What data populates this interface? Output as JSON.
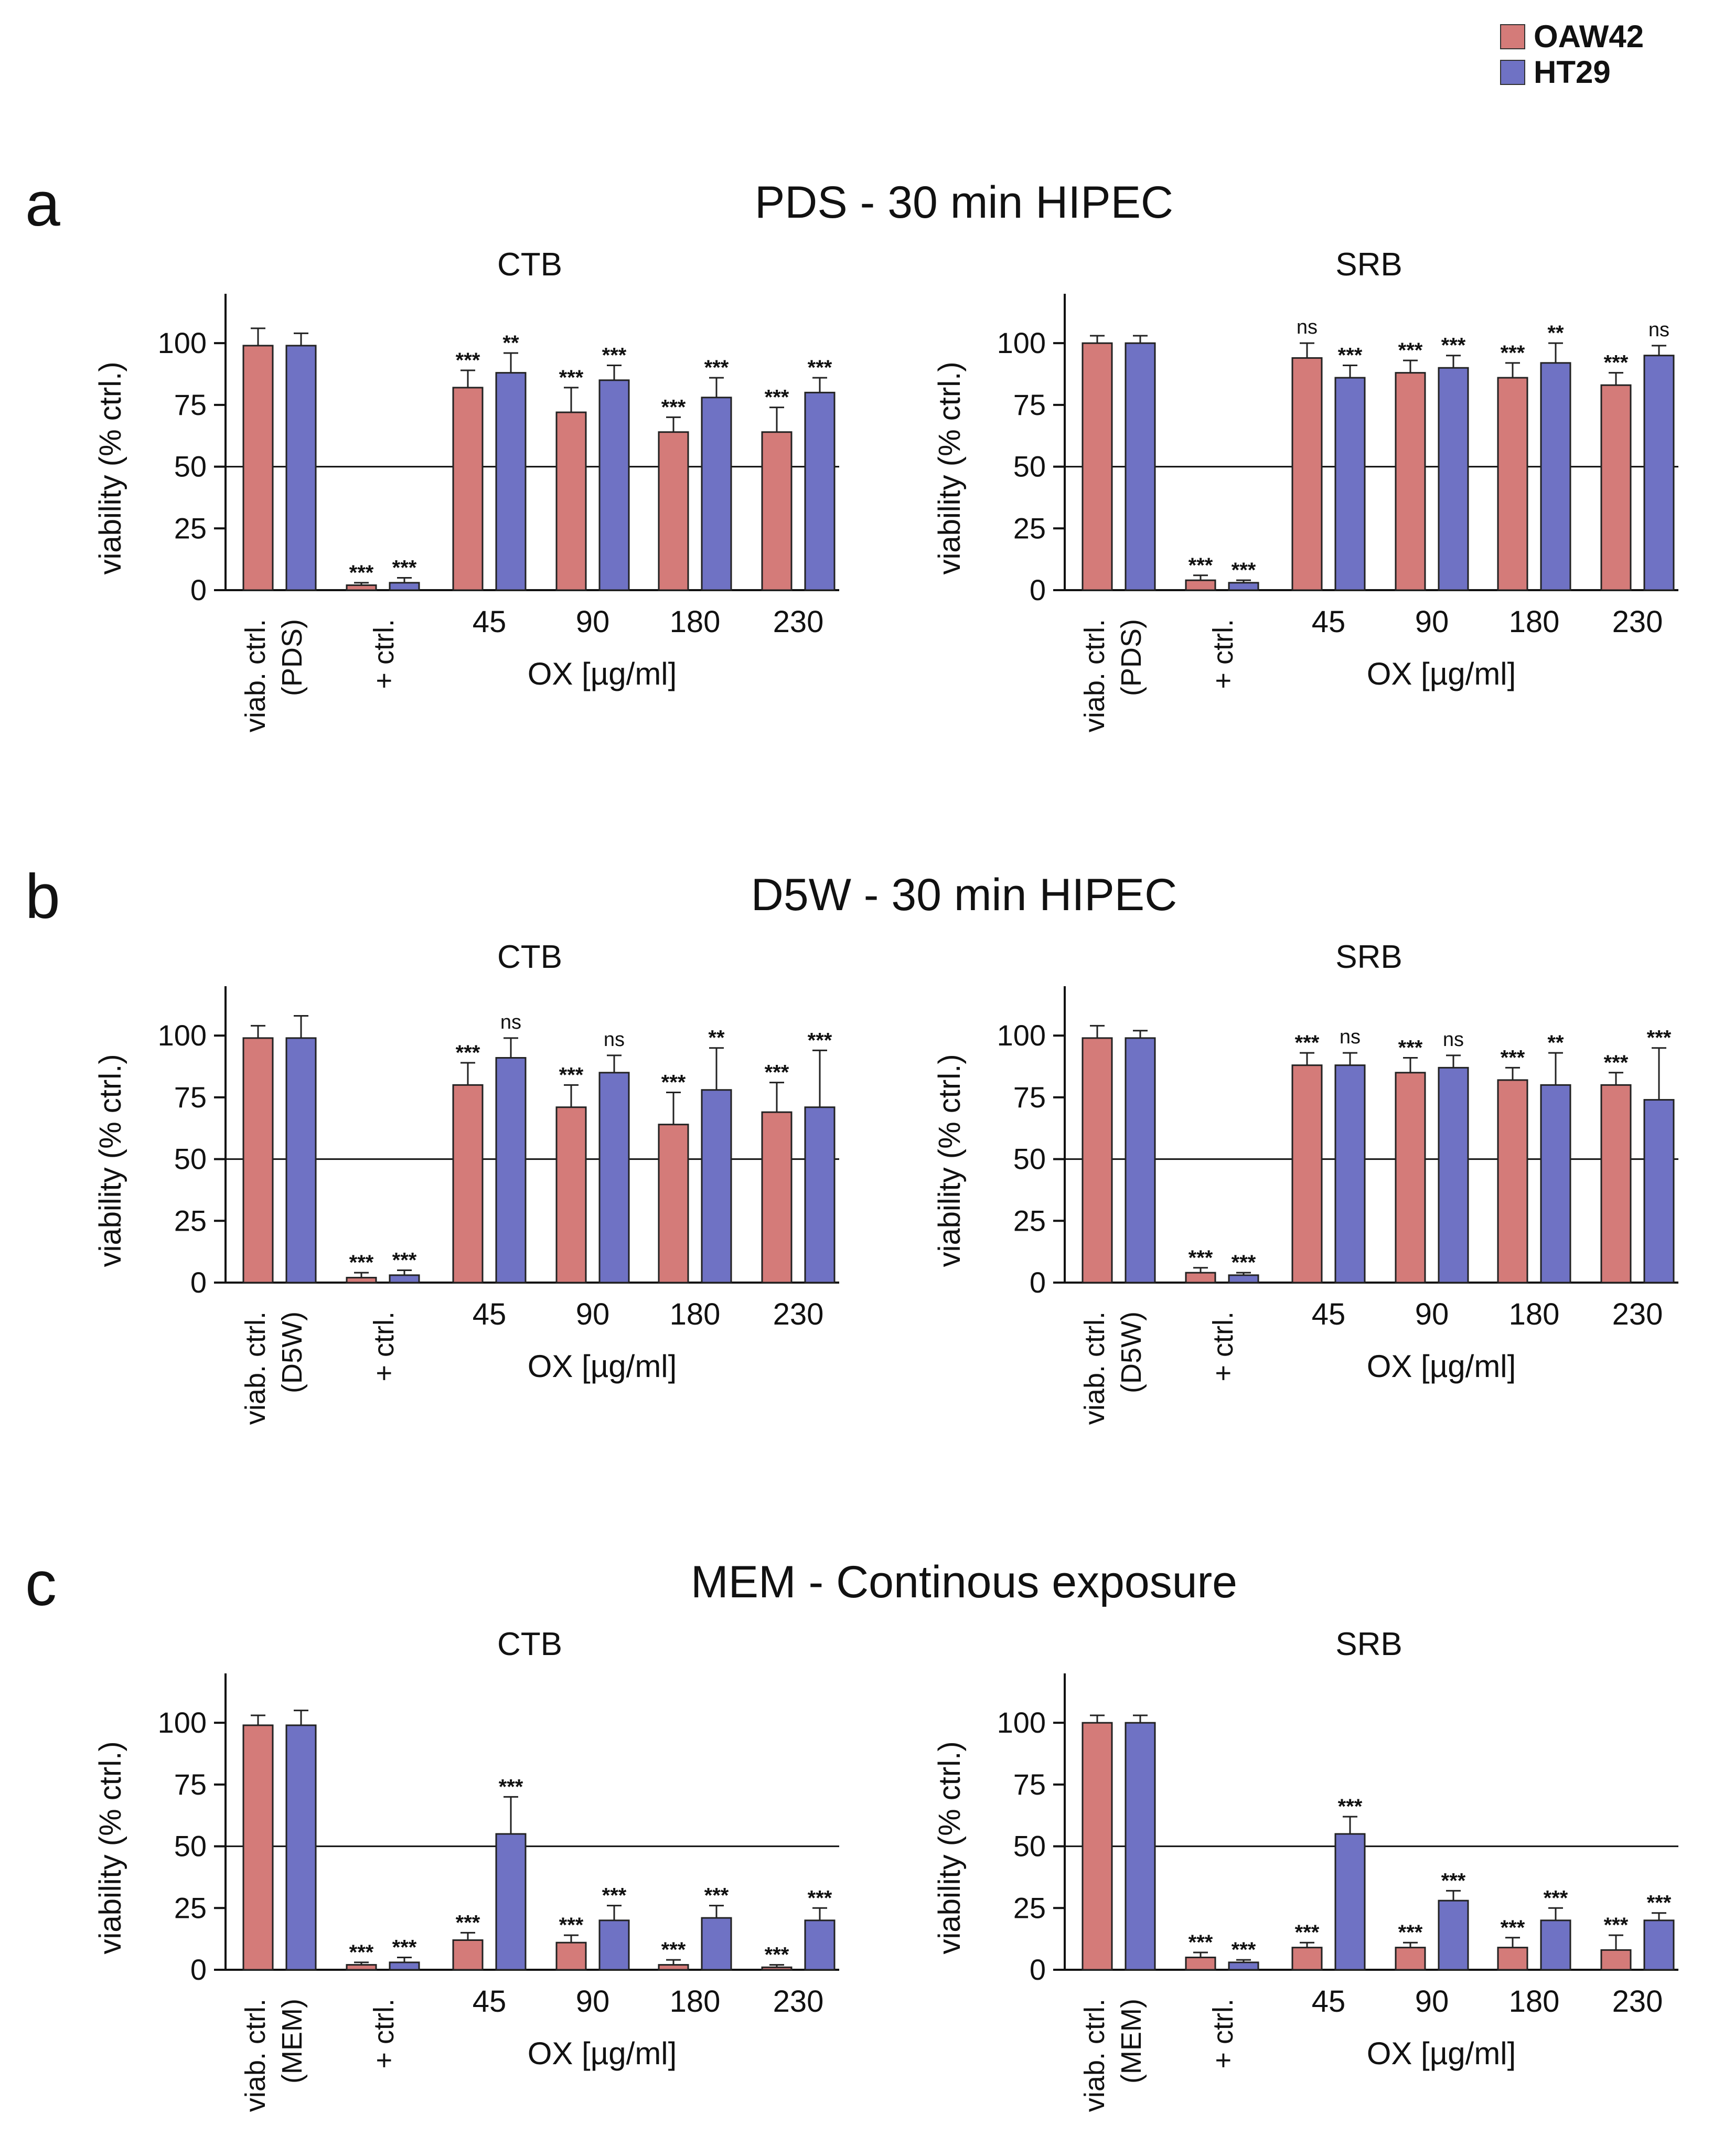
{
  "colors": {
    "oaw42": "#d47b79",
    "ht29": "#6f72c4"
  },
  "legend": {
    "items": [
      {
        "label": "OAW42",
        "color": "#d47b79"
      },
      {
        "label": "HT29",
        "color": "#6f72c4"
      }
    ]
  },
  "panels": [
    {
      "letter": "a",
      "title": "PDS - 30 min HIPEC"
    },
    {
      "letter": "b",
      "title": "D5W - 30 min HIPEC"
    },
    {
      "letter": "c",
      "title": "MEM - Continous exposure"
    }
  ],
  "chart_data": [
    {
      "type": "bar",
      "panel": "a",
      "title": "CTB",
      "ylabel": "viability (% ctrl.)",
      "xlabel": "OX [µg/ml]",
      "ylim": [
        0,
        120
      ],
      "yticks": [
        0,
        25,
        50,
        75,
        100
      ],
      "reference_line": 50,
      "categories": [
        "viab. ctrl. (PDS)",
        "+ ctrl.",
        "45",
        "90",
        "180",
        "230"
      ],
      "series": [
        {
          "name": "OAW42",
          "values": [
            99,
            2,
            82,
            72,
            64,
            64
          ],
          "errors": [
            7,
            1,
            7,
            10,
            6,
            10
          ],
          "significance": [
            "",
            "***",
            "***",
            "***",
            "***",
            "***"
          ]
        },
        {
          "name": "HT29",
          "values": [
            99,
            3,
            88,
            85,
            78,
            80
          ],
          "errors": [
            5,
            2,
            8,
            6,
            8,
            6
          ],
          "significance": [
            "",
            "***",
            "**",
            "***",
            "***",
            "***"
          ]
        }
      ]
    },
    {
      "type": "bar",
      "panel": "a",
      "title": "SRB",
      "ylabel": "viability (% ctrl.)",
      "xlabel": "OX [µg/ml]",
      "ylim": [
        0,
        120
      ],
      "yticks": [
        0,
        25,
        50,
        75,
        100
      ],
      "reference_line": 50,
      "categories": [
        "viab. ctrl. (PDS)",
        "+ ctrl.",
        "45",
        "90",
        "180",
        "230"
      ],
      "series": [
        {
          "name": "OAW42",
          "values": [
            100,
            4,
            94,
            88,
            86,
            83
          ],
          "errors": [
            3,
            2,
            6,
            5,
            6,
            5
          ],
          "significance": [
            "",
            "***",
            "ns",
            "***",
            "***",
            "***"
          ]
        },
        {
          "name": "HT29",
          "values": [
            100,
            3,
            86,
            90,
            92,
            95
          ],
          "errors": [
            3,
            1,
            5,
            5,
            8,
            4
          ],
          "significance": [
            "",
            "***",
            "***",
            "***",
            "**",
            "ns"
          ]
        }
      ]
    },
    {
      "type": "bar",
      "panel": "b",
      "title": "CTB",
      "ylabel": "viability (% ctrl.)",
      "xlabel": "OX [µg/ml]",
      "ylim": [
        0,
        120
      ],
      "yticks": [
        0,
        25,
        50,
        75,
        100
      ],
      "reference_line": 50,
      "categories": [
        "viab. ctrl. (D5W)",
        "+ ctrl.",
        "45",
        "90",
        "180",
        "230"
      ],
      "series": [
        {
          "name": "OAW42",
          "values": [
            99,
            2,
            80,
            71,
            64,
            69
          ],
          "errors": [
            5,
            2,
            9,
            9,
            13,
            12
          ],
          "significance": [
            "",
            "***",
            "***",
            "***",
            "***",
            "***"
          ]
        },
        {
          "name": "HT29",
          "values": [
            99,
            3,
            91,
            85,
            78,
            71
          ],
          "errors": [
            9,
            2,
            8,
            7,
            17,
            23
          ],
          "significance": [
            "",
            "***",
            "ns",
            "ns",
            "**",
            "***"
          ]
        }
      ]
    },
    {
      "type": "bar",
      "panel": "b",
      "title": "SRB",
      "ylabel": "viability (% ctrl.)",
      "xlabel": "OX [µg/ml]",
      "ylim": [
        0,
        120
      ],
      "yticks": [
        0,
        25,
        50,
        75,
        100
      ],
      "reference_line": 50,
      "categories": [
        "viab. ctrl. (D5W)",
        "+ ctrl.",
        "45",
        "90",
        "180",
        "230"
      ],
      "series": [
        {
          "name": "OAW42",
          "values": [
            99,
            4,
            88,
            85,
            82,
            80
          ],
          "errors": [
            5,
            2,
            5,
            6,
            5,
            5
          ],
          "significance": [
            "",
            "***",
            "***",
            "***",
            "***",
            "***"
          ]
        },
        {
          "name": "HT29",
          "values": [
            99,
            3,
            88,
            87,
            80,
            74
          ],
          "errors": [
            3,
            1,
            5,
            5,
            13,
            21
          ],
          "significance": [
            "",
            "***",
            "ns",
            "ns",
            "**",
            "***"
          ]
        }
      ]
    },
    {
      "type": "bar",
      "panel": "c",
      "title": "CTB",
      "ylabel": "viability (% ctrl.)",
      "xlabel": "OX [µg/ml]",
      "ylim": [
        0,
        120
      ],
      "yticks": [
        0,
        25,
        50,
        75,
        100
      ],
      "reference_line": 50,
      "categories": [
        "viab. ctrl. (MEM)",
        "+ ctrl.",
        "45",
        "90",
        "180",
        "230"
      ],
      "series": [
        {
          "name": "OAW42",
          "values": [
            99,
            2,
            12,
            11,
            2,
            1
          ],
          "errors": [
            4,
            1,
            3,
            3,
            2,
            1
          ],
          "significance": [
            "",
            "***",
            "***",
            "***",
            "***",
            "***"
          ]
        },
        {
          "name": "HT29",
          "values": [
            99,
            3,
            55,
            20,
            21,
            20
          ],
          "errors": [
            6,
            2,
            15,
            6,
            5,
            5
          ],
          "significance": [
            "",
            "***",
            "***",
            "***",
            "***",
            "***"
          ]
        }
      ]
    },
    {
      "type": "bar",
      "panel": "c",
      "title": "SRB",
      "ylabel": "viability (% ctrl.)",
      "xlabel": "OX [µg/ml]",
      "ylim": [
        0,
        120
      ],
      "yticks": [
        0,
        25,
        50,
        75,
        100
      ],
      "reference_line": 50,
      "categories": [
        "viab. ctrl. (MEM)",
        "+ ctrl.",
        "45",
        "90",
        "180",
        "230"
      ],
      "series": [
        {
          "name": "OAW42",
          "values": [
            100,
            5,
            9,
            9,
            9,
            8
          ],
          "errors": [
            3,
            2,
            2,
            2,
            4,
            6
          ],
          "significance": [
            "",
            "***",
            "***",
            "***",
            "***",
            "***"
          ]
        },
        {
          "name": "HT29",
          "values": [
            100,
            3,
            55,
            28,
            20,
            20
          ],
          "errors": [
            3,
            1,
            7,
            4,
            5,
            3
          ],
          "significance": [
            "",
            "***",
            "***",
            "***",
            "***",
            "***"
          ]
        }
      ]
    }
  ]
}
